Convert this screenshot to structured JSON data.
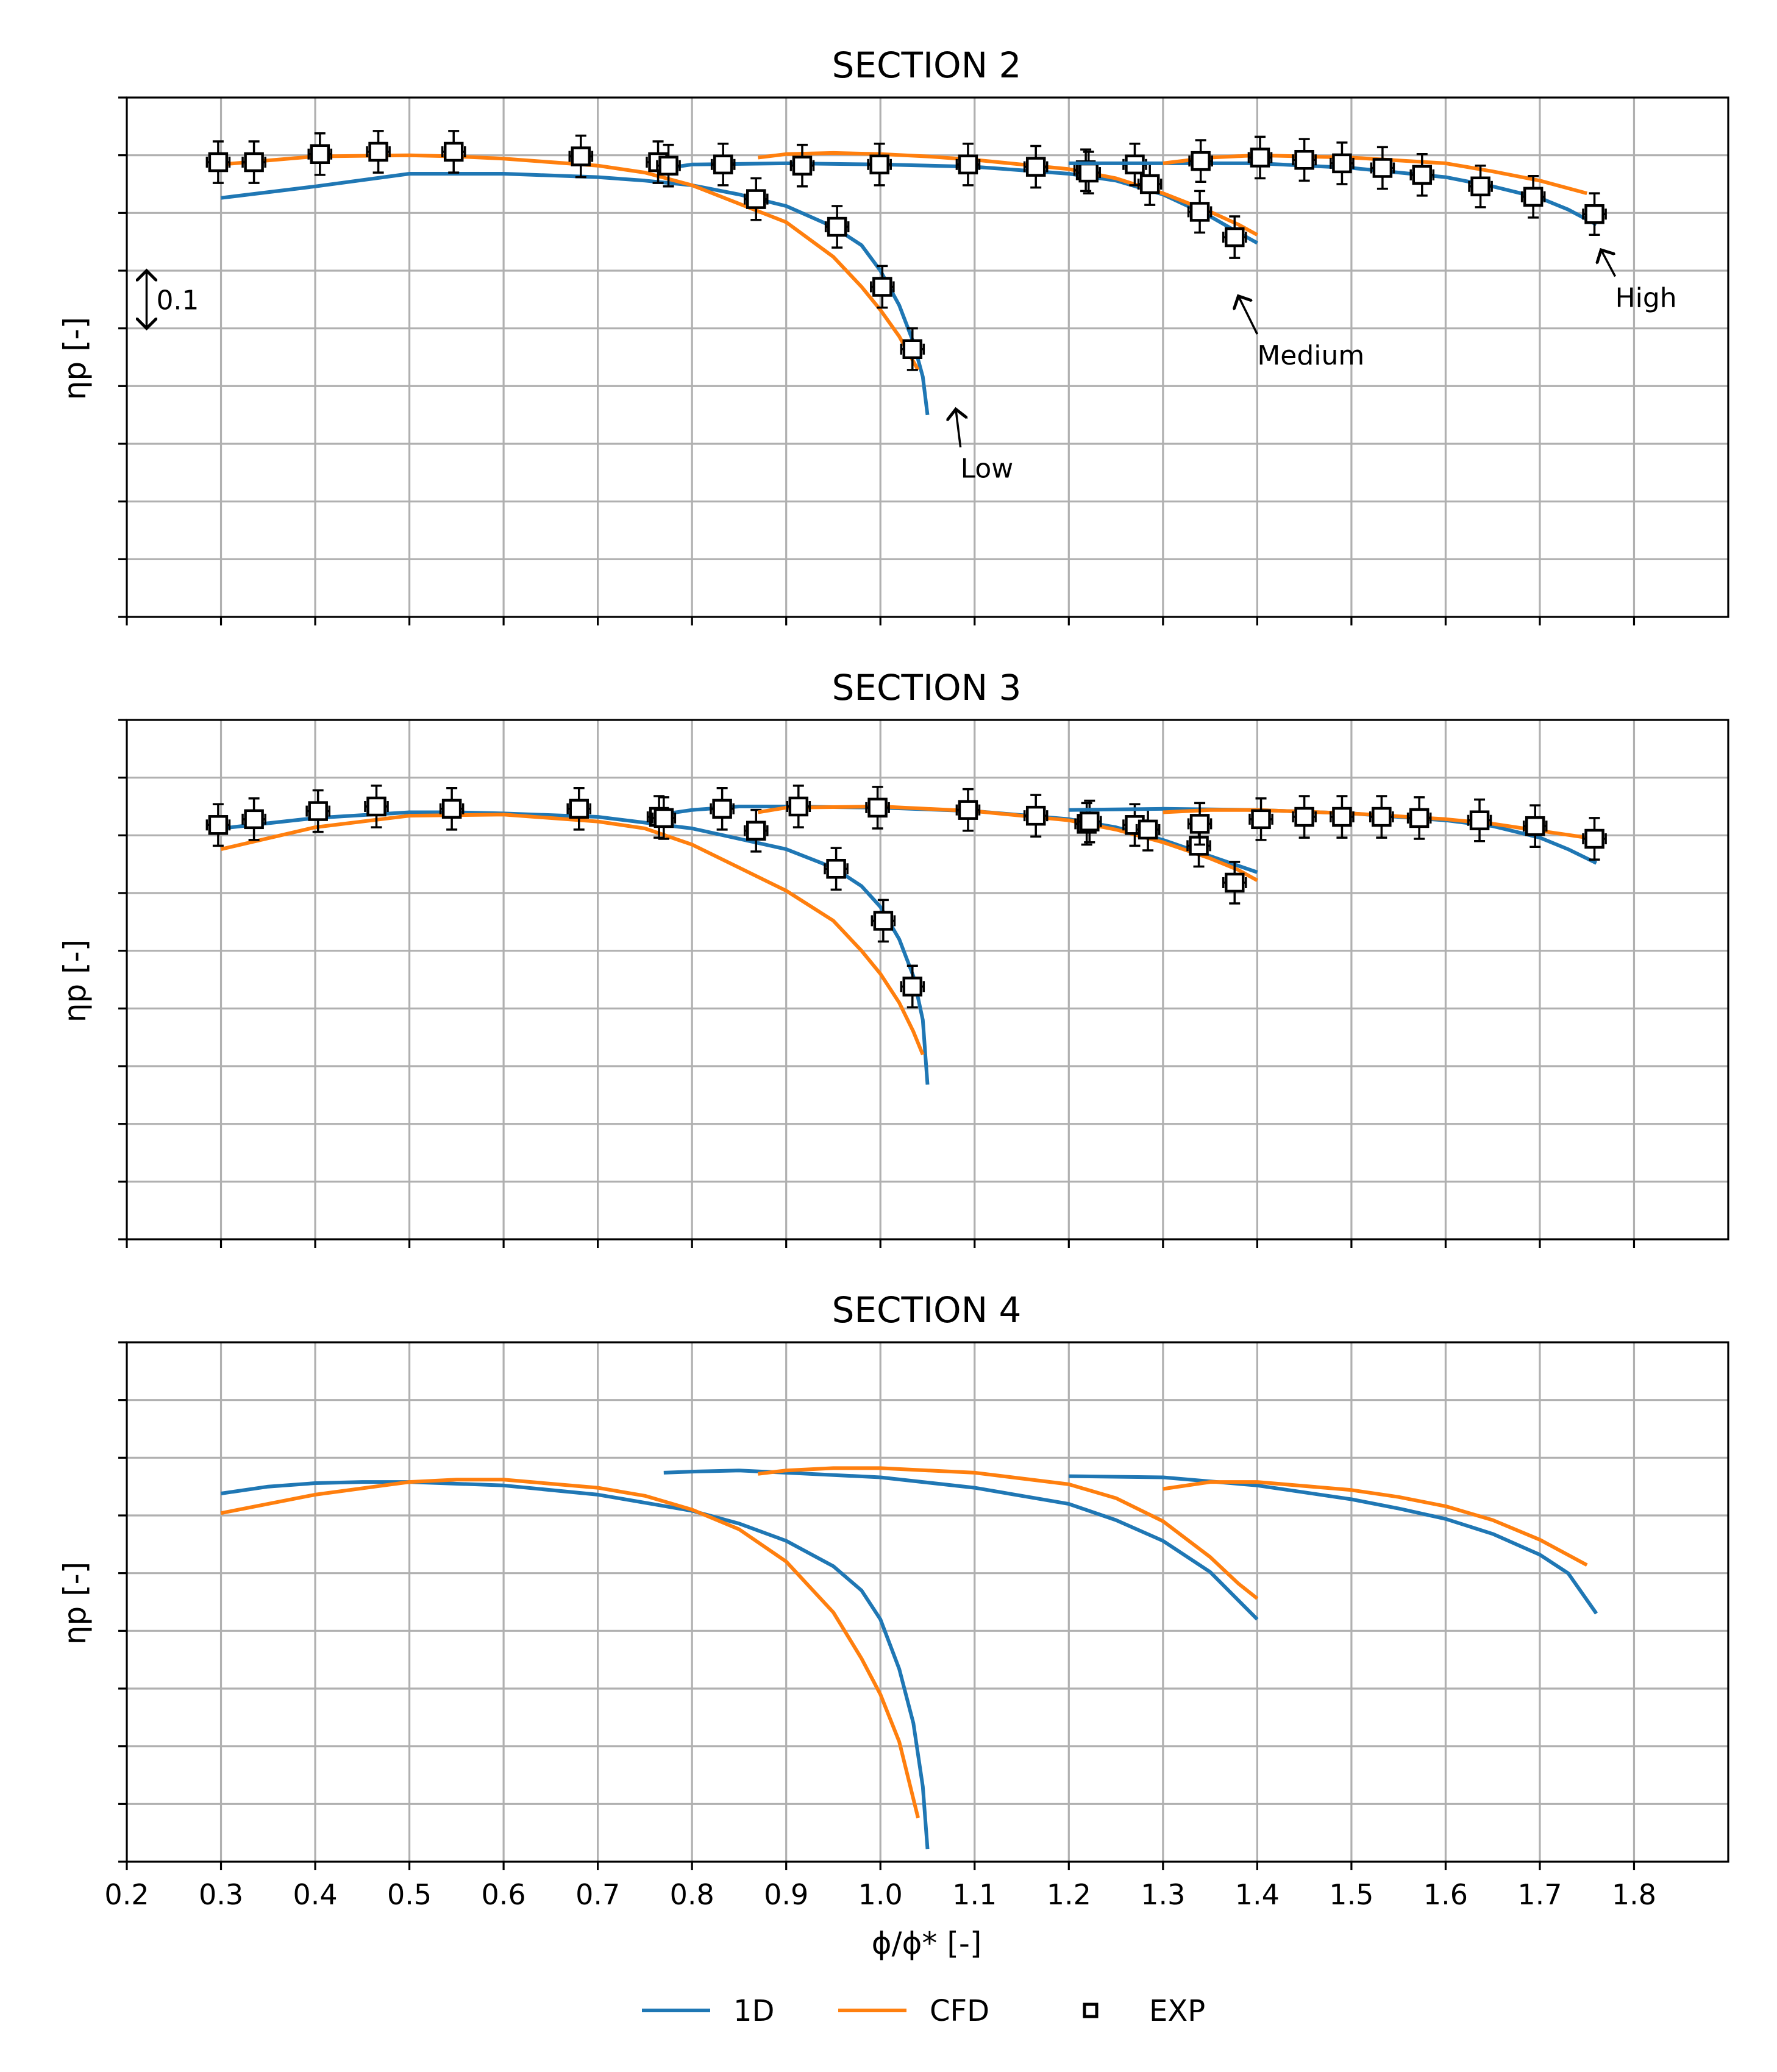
{
  "colors": {
    "oned": "#1f77b4",
    "cfd": "#ff7f0e",
    "exp": "#000000",
    "grid": "#b0b0b0"
  },
  "chart_data": {
    "type": "line",
    "xlabel": "ϕ/ϕ* [-]",
    "ylabel": "ηp [-]",
    "xlim": [
      0.2,
      1.9
    ],
    "x_ticks": [
      0.2,
      0.3,
      0.4,
      0.5,
      0.6,
      0.7,
      0.8,
      0.9,
      1.0,
      1.1,
      1.2,
      1.3,
      1.4,
      1.5,
      1.6,
      1.7,
      1.8
    ],
    "x_tick_labels": [
      "0.2",
      "0.3",
      "0.4",
      "0.5",
      "0.6",
      "0.7",
      "0.8",
      "0.9",
      "1.0",
      "1.1",
      "1.2",
      "1.3",
      "1.4",
      "1.5",
      "1.6",
      "1.7",
      "1.8"
    ],
    "y_relative_grid_step": 0.05,
    "ylim_relative": [
      0,
      0.45
    ],
    "legend": {
      "placement": "bottom-center",
      "entries": [
        {
          "label": "1D",
          "kind": "line",
          "color_key": "oned"
        },
        {
          "label": "CFD",
          "kind": "line",
          "color_key": "cfd"
        },
        {
          "label": "EXP",
          "kind": "square",
          "color_key": "exp"
        }
      ]
    },
    "panels": [
      {
        "title": "SECTION 2",
        "annotations": [
          {
            "text": "0.1",
            "type": "scale-bar",
            "x": 0.221,
            "y_from": 0.3,
            "y_to": 0.25
          },
          {
            "text": "Low",
            "from": [
              1.085,
              0.147
            ],
            "to": [
              1.08,
              0.18
            ]
          },
          {
            "text": "Medium",
            "from": [
              1.4,
              0.245
            ],
            "to": [
              1.38,
              0.278
            ]
          },
          {
            "text": "High",
            "from": [
              1.78,
              0.295
            ],
            "to": [
              1.765,
              0.318
            ]
          }
        ],
        "series": [
          {
            "name": "1D",
            "speed": "Low",
            "x": [
              0.3,
              0.4,
              0.5,
              0.6,
              0.7,
              0.75,
              0.8,
              0.85,
              0.9,
              0.95,
              0.98,
              1.0,
              1.02,
              1.035,
              1.045,
              1.05
            ],
            "y": [
              0.363,
              0.373,
              0.384,
              0.384,
              0.381,
              0.378,
              0.374,
              0.366,
              0.356,
              0.338,
              0.322,
              0.3,
              0.27,
              0.238,
              0.208,
              0.175
            ]
          },
          {
            "name": "CFD",
            "speed": "Low",
            "x": [
              0.3,
              0.4,
              0.5,
              0.55,
              0.6,
              0.7,
              0.75,
              0.8,
              0.85,
              0.9,
              0.95,
              0.98,
              1.0,
              1.02,
              1.04
            ],
            "y": [
              0.392,
              0.399,
              0.4,
              0.399,
              0.397,
              0.391,
              0.385,
              0.374,
              0.358,
              0.342,
              0.312,
              0.286,
              0.266,
              0.243,
              0.214
            ]
          },
          {
            "name": "EXP",
            "speed": "Low",
            "x": [
              0.297,
              0.335,
              0.405,
              0.467,
              0.547,
              0.682,
              0.764,
              0.868,
              0.954,
              1.002,
              1.034
            ],
            "y": [
              0.394,
              0.394,
              0.401,
              0.403,
              0.403,
              0.399,
              0.394,
              0.362,
              0.338,
              0.286,
              0.232
            ],
            "xerr": 0.012,
            "yerr": 0.018
          },
          {
            "name": "1D",
            "speed": "Medium",
            "x": [
              0.775,
              0.8,
              0.9,
              1.0,
              1.1,
              1.2,
              1.25,
              1.3,
              1.35,
              1.38,
              1.4
            ],
            "y": [
              0.389,
              0.392,
              0.393,
              0.392,
              0.39,
              0.384,
              0.378,
              0.366,
              0.347,
              0.333,
              0.324
            ]
          },
          {
            "name": "CFD",
            "speed": "Medium",
            "x": [
              0.87,
              0.9,
              0.95,
              1.0,
              1.05,
              1.1,
              1.2,
              1.25,
              1.3,
              1.35,
              1.38,
              1.4
            ],
            "y": [
              0.398,
              0.401,
              0.402,
              0.401,
              0.399,
              0.396,
              0.388,
              0.38,
              0.367,
              0.351,
              0.34,
              0.331
            ]
          },
          {
            "name": "EXP",
            "speed": "Medium",
            "x": [
              0.775,
              0.833,
              0.917,
              0.999,
              1.093,
              1.165,
              1.218,
              1.221,
              1.27,
              1.286,
              1.339,
              1.376
            ],
            "y": [
              0.391,
              0.392,
              0.391,
              0.392,
              0.392,
              0.39,
              0.387,
              0.385,
              0.392,
              0.375,
              0.351,
              0.329
            ],
            "xerr": 0.012,
            "yerr": 0.018
          },
          {
            "name": "1D",
            "speed": "High",
            "x": [
              1.2,
              1.3,
              1.4,
              1.5,
              1.6,
              1.65,
              1.7,
              1.73,
              1.76
            ],
            "y": [
              0.393,
              0.393,
              0.393,
              0.389,
              0.381,
              0.373,
              0.363,
              0.353,
              0.34
            ]
          },
          {
            "name": "CFD",
            "speed": "High",
            "x": [
              1.3,
              1.35,
              1.4,
              1.5,
              1.6,
              1.65,
              1.7,
              1.75
            ],
            "y": [
              0.393,
              0.398,
              0.4,
              0.398,
              0.393,
              0.386,
              0.378,
              0.367
            ]
          },
          {
            "name": "EXP",
            "speed": "High",
            "x": [
              1.34,
              1.403,
              1.45,
              1.49,
              1.533,
              1.575,
              1.637,
              1.693,
              1.758
            ],
            "y": [
              0.395,
              0.398,
              0.396,
              0.393,
              0.389,
              0.383,
              0.373,
              0.364,
              0.349
            ],
            "xerr": 0.012,
            "yerr": 0.018
          }
        ]
      },
      {
        "title": "SECTION 3",
        "annotations": [],
        "series": [
          {
            "name": "1D",
            "speed": "Low",
            "x": [
              0.3,
              0.4,
              0.5,
              0.55,
              0.6,
              0.7,
              0.8,
              0.9,
              0.95,
              0.98,
              1.0,
              1.02,
              1.035,
              1.045,
              1.05
            ],
            "y": [
              0.356,
              0.365,
              0.37,
              0.37,
              0.369,
              0.366,
              0.356,
              0.338,
              0.322,
              0.306,
              0.288,
              0.26,
              0.228,
              0.19,
              0.134
            ]
          },
          {
            "name": "CFD",
            "speed": "Low",
            "x": [
              0.3,
              0.4,
              0.5,
              0.6,
              0.7,
              0.75,
              0.8,
              0.85,
              0.9,
              0.95,
              0.98,
              1.0,
              1.02,
              1.035,
              1.045
            ],
            "y": [
              0.338,
              0.357,
              0.367,
              0.368,
              0.362,
              0.356,
              0.342,
              0.322,
              0.302,
              0.276,
              0.25,
              0.23,
              0.205,
              0.18,
              0.16
            ]
          },
          {
            "name": "EXP",
            "speed": "Low",
            "x": [
              0.297,
              0.335,
              0.403,
              0.465,
              0.545,
              0.68,
              0.765,
              0.868,
              0.953,
              1.003,
              1.034
            ],
            "y": [
              0.359,
              0.364,
              0.371,
              0.375,
              0.373,
              0.373,
              0.366,
              0.354,
              0.321,
              0.276,
              0.219
            ],
            "xerr": 0.012,
            "yerr": 0.018
          },
          {
            "name": "1D",
            "speed": "Medium",
            "x": [
              0.775,
              0.8,
              0.85,
              0.9,
              1.0,
              1.1,
              1.2,
              1.25,
              1.3,
              1.35,
              1.4
            ],
            "y": [
              0.369,
              0.372,
              0.375,
              0.375,
              0.374,
              0.371,
              0.364,
              0.357,
              0.346,
              0.332,
              0.318
            ]
          },
          {
            "name": "CFD",
            "speed": "Medium",
            "x": [
              0.87,
              0.9,
              1.0,
              1.1,
              1.2,
              1.25,
              1.3,
              1.35,
              1.38,
              1.4
            ],
            "y": [
              0.37,
              0.374,
              0.375,
              0.371,
              0.363,
              0.355,
              0.344,
              0.33,
              0.32,
              0.311
            ]
          },
          {
            "name": "EXP",
            "speed": "Medium",
            "x": [
              0.77,
              0.832,
              0.913,
              0.997,
              1.093,
              1.165,
              1.219,
              1.222,
              1.27,
              1.284,
              1.338,
              1.376
            ],
            "y": [
              0.365,
              0.373,
              0.375,
              0.374,
              0.372,
              0.367,
              0.36,
              0.362,
              0.359,
              0.355,
              0.341,
              0.309
            ],
            "xerr": 0.012,
            "yerr": 0.018
          },
          {
            "name": "1D",
            "speed": "High",
            "x": [
              1.2,
              1.3,
              1.4,
              1.5,
              1.6,
              1.65,
              1.7,
              1.73,
              1.76
            ],
            "y": [
              0.372,
              0.373,
              0.372,
              0.369,
              0.363,
              0.358,
              0.348,
              0.338,
              0.326
            ]
          },
          {
            "name": "CFD",
            "speed": "High",
            "x": [
              1.3,
              1.35,
              1.4,
              1.5,
              1.6,
              1.65,
              1.7,
              1.75
            ],
            "y": [
              0.37,
              0.372,
              0.372,
              0.369,
              0.364,
              0.36,
              0.354,
              0.348
            ]
          },
          {
            "name": "EXP",
            "speed": "High",
            "x": [
              1.339,
              1.404,
              1.45,
              1.49,
              1.532,
              1.572,
              1.636,
              1.695,
              1.758
            ],
            "y": [
              0.36,
              0.364,
              0.366,
              0.366,
              0.366,
              0.365,
              0.363,
              0.358,
              0.347
            ],
            "xerr": 0.012,
            "yerr": 0.018
          }
        ]
      },
      {
        "title": "SECTION 4",
        "annotations": [],
        "series": [
          {
            "name": "1D",
            "speed": "Low",
            "x": [
              0.3,
              0.35,
              0.4,
              0.45,
              0.5,
              0.6,
              0.7,
              0.8,
              0.85,
              0.9,
              0.95,
              0.98,
              1.0,
              1.02,
              1.035,
              1.045,
              1.05
            ],
            "y": [
              0.319,
              0.325,
              0.328,
              0.329,
              0.329,
              0.326,
              0.318,
              0.304,
              0.293,
              0.278,
              0.256,
              0.235,
              0.21,
              0.167,
              0.12,
              0.065,
              0.011
            ]
          },
          {
            "name": "CFD",
            "speed": "Low",
            "x": [
              0.3,
              0.4,
              0.5,
              0.55,
              0.6,
              0.7,
              0.75,
              0.8,
              0.85,
              0.9,
              0.95,
              0.98,
              1.0,
              1.02,
              1.04
            ],
            "y": [
              0.302,
              0.318,
              0.329,
              0.331,
              0.331,
              0.324,
              0.317,
              0.305,
              0.288,
              0.26,
              0.216,
              0.176,
              0.145,
              0.104,
              0.038
            ]
          },
          {
            "name": "1D",
            "speed": "Medium",
            "x": [
              0.77,
              0.8,
              0.85,
              0.9,
              1.0,
              1.1,
              1.2,
              1.25,
              1.3,
              1.35,
              1.4
            ],
            "y": [
              0.337,
              0.338,
              0.339,
              0.337,
              0.333,
              0.324,
              0.31,
              0.296,
              0.278,
              0.251,
              0.21
            ]
          },
          {
            "name": "CFD",
            "speed": "Medium",
            "x": [
              0.87,
              0.9,
              0.95,
              1.0,
              1.1,
              1.2,
              1.25,
              1.3,
              1.35,
              1.38,
              1.4
            ],
            "y": [
              0.336,
              0.339,
              0.341,
              0.341,
              0.337,
              0.327,
              0.315,
              0.295,
              0.264,
              0.241,
              0.228
            ]
          },
          {
            "name": "1D",
            "speed": "High",
            "x": [
              1.2,
              1.3,
              1.4,
              1.5,
              1.55,
              1.6,
              1.65,
              1.7,
              1.73,
              1.76
            ],
            "y": [
              0.334,
              0.333,
              0.326,
              0.314,
              0.306,
              0.297,
              0.284,
              0.266,
              0.25,
              0.215
            ]
          },
          {
            "name": "CFD",
            "speed": "High",
            "x": [
              1.3,
              1.35,
              1.4,
              1.5,
              1.55,
              1.6,
              1.65,
              1.7,
              1.75
            ],
            "y": [
              0.323,
              0.329,
              0.329,
              0.322,
              0.316,
              0.308,
              0.296,
              0.279,
              0.257
            ]
          }
        ]
      }
    ]
  }
}
